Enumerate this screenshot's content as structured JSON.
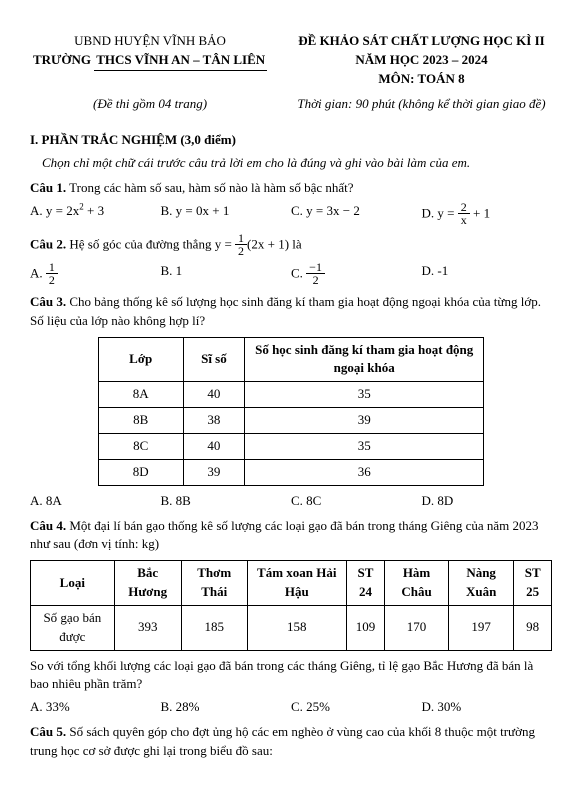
{
  "header": {
    "left_line1": "UBND HUYỆN VĨNH BẢO",
    "left_line2_pre": "TRƯỜNG ",
    "left_line2_under": "THCS VĨNH AN – TÂN LIÊN",
    "right_line1": "ĐỀ KHẢO SÁT CHẤT LƯỢNG HỌC KÌ II",
    "right_line2": "NĂM HỌC 2023 – 2024",
    "right_line3": "MÔN: TOÁN 8",
    "dethi": "(Đề thi gồm 04 trang)",
    "thoigian": "Thời gian: 90 phút (không kể thời gian giao đề)"
  },
  "sec1": {
    "title": "I. PHẦN TRẮC NGHIỆM (3,0 điểm)",
    "instr": "Chọn chỉ một chữ cái trước câu trả lời em cho là đúng và ghi vào bài làm của em."
  },
  "q1": {
    "label": "Câu 1.",
    "stem": " Trong các hàm số sau, hàm số nào là hàm số bậc nhất?",
    "a": "A.  y = 2x",
    "a_sup": "2",
    "a_post": " + 3",
    "b": "B.  y = 0x + 1",
    "c": "C.  y = 3x − 2",
    "d_pre": "D.  y = ",
    "d_num": "2",
    "d_den": "x",
    "d_post": " + 1"
  },
  "q2": {
    "label": "Câu 2.",
    "stem_pre": " Hệ số góc của đường thẳng  y = ",
    "stem_num": "1",
    "stem_den": "2",
    "stem_post": "(2x + 1)  là",
    "a_pre": "A. ",
    "a_num": "1",
    "a_den": "2",
    "b": "B.  1",
    "c_pre": "C. ",
    "c_num": "−1",
    "c_den": "2",
    "d": "D.  -1"
  },
  "q3": {
    "label": "Câu 3.",
    "stem": " Cho bảng thống kê số lượng học sinh đăng kí tham gia hoạt động ngoại khóa của từng lớp. Số liệu của lớp nào không hợp lí?",
    "th1": "Lớp",
    "th2": "Sĩ số",
    "th3": "Số học sinh đăng kí tham gia hoạt động ngoại khóa",
    "rows": [
      {
        "c1": "8A",
        "c2": "40",
        "c3": "35"
      },
      {
        "c1": "8B",
        "c2": "38",
        "c3": "39"
      },
      {
        "c1": "8C",
        "c2": "40",
        "c3": "35"
      },
      {
        "c1": "8D",
        "c2": "39",
        "c3": "36"
      }
    ],
    "a": "A. 8A",
    "b": "B. 8B",
    "c": "C. 8C",
    "d": "D. 8D"
  },
  "q4": {
    "label": "Câu 4.",
    "stem": " Một đại lí bán gạo thống kê số lượng các loại gạo đã bán trong tháng Giêng của năm 2023 như sau (đơn vị tính: kg)",
    "th": [
      "Loại",
      "Bắc Hương",
      "Thơm Thái",
      "Tám xoan Hải Hậu",
      "ST 24",
      "Hàm Châu",
      "Nàng Xuân",
      "ST 25"
    ],
    "row_label": "Số gạo bán được",
    "row": [
      "393",
      "185",
      "158",
      "109",
      "170",
      "197",
      "98"
    ],
    "q": "So với tổng khối lượng các loại gạo đã bán trong các tháng Giêng, tỉ lệ gạo Bắc Hương đã bán là bao nhiêu phần trăm?",
    "a": "A. 33%",
    "b": "B. 28%",
    "c": "C. 25%",
    "d": "D. 30%"
  },
  "q5": {
    "label": "Câu 5.",
    "stem": " Số sách quyên góp cho đợt ủng hộ các em nghèo ở vùng cao của khối 8 thuộc một trường trung học cơ sở được ghi lại trong biểu đồ sau:"
  }
}
